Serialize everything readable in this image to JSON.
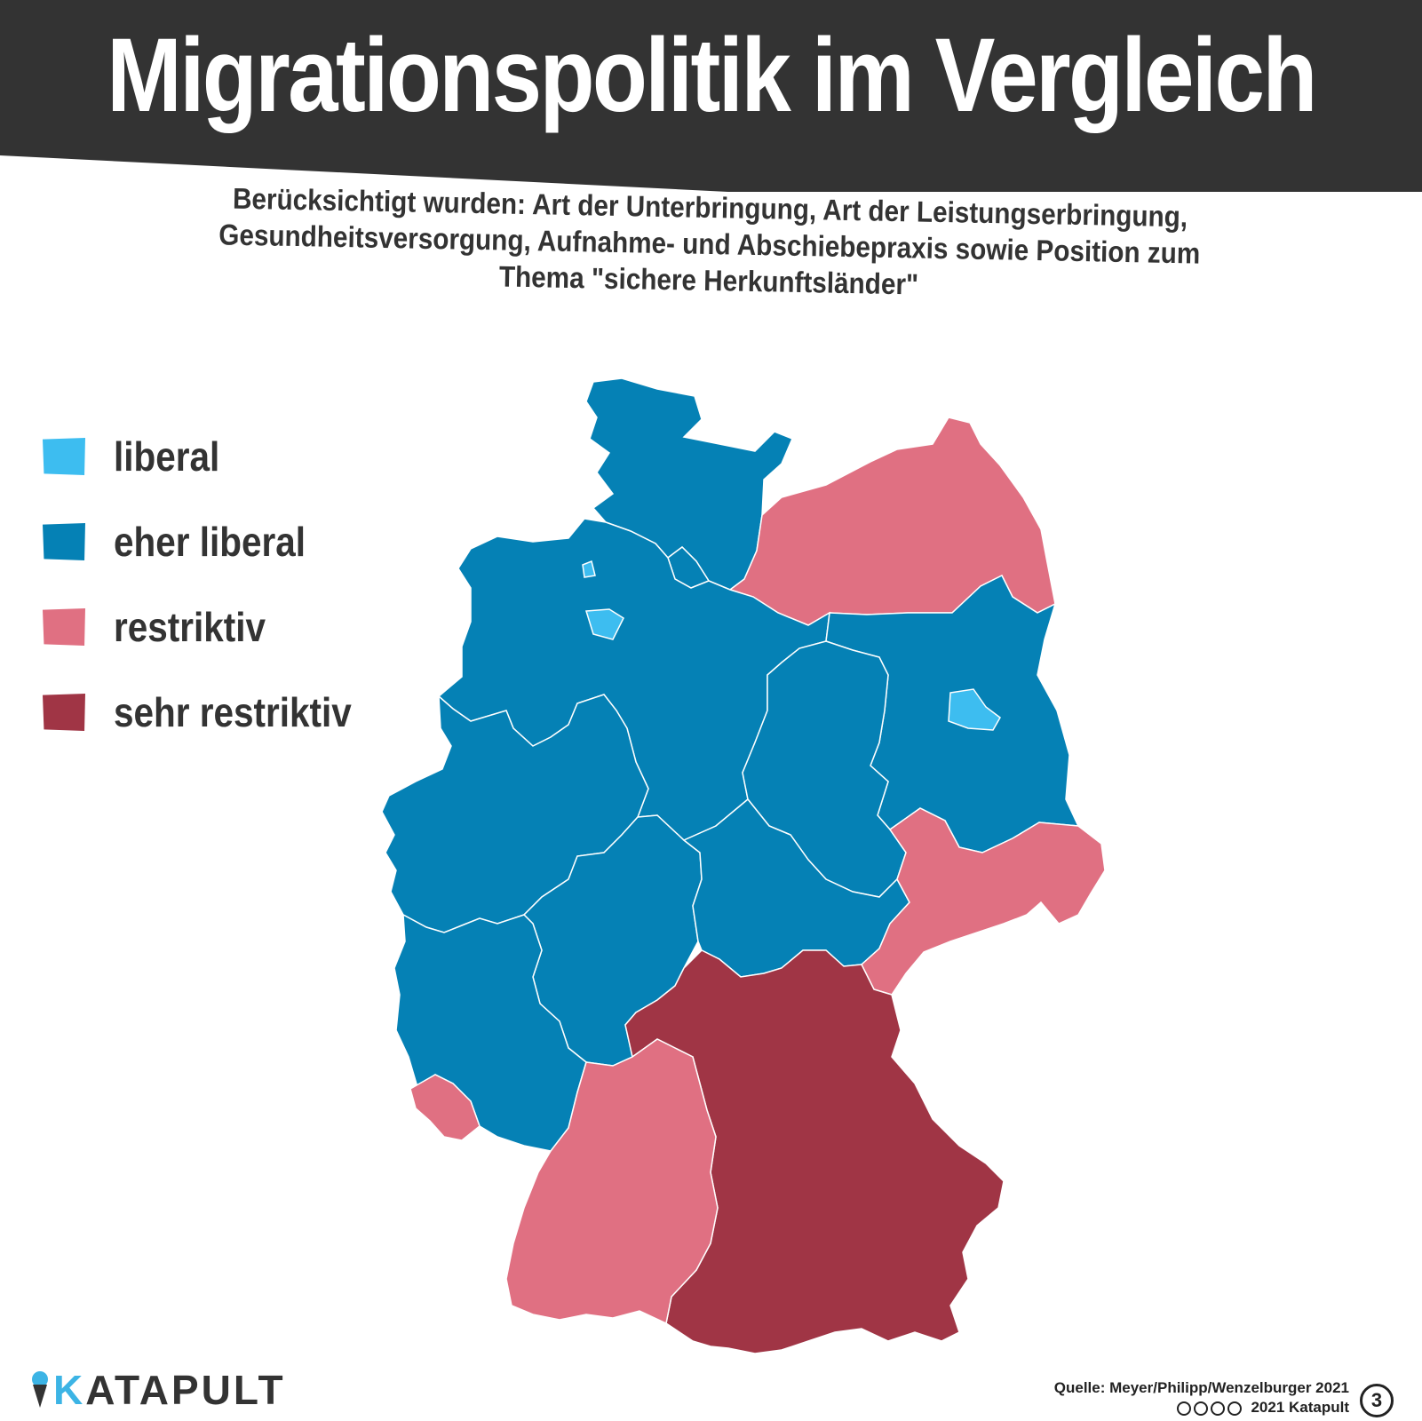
{
  "title": "Migrationspolitik im Vergleich",
  "subtitle": "Berücksichtigt wurden: Art der Unterbringung, Art der Leistungserbringung, Gesundheitsversorgung, Aufnahme- und Abschiebepraxis sowie Position zum Thema \"sichere Herkunftsländer\"",
  "legend": [
    {
      "label": "liberal",
      "color": "#3dbdf0"
    },
    {
      "label": "eher liberal",
      "color": "#0581b5"
    },
    {
      "label": "restriktiv",
      "color": "#e07082"
    },
    {
      "label": "sehr restriktiv",
      "color": "#a03545"
    }
  ],
  "colors": {
    "title_bar": "#333333",
    "border": "#ffffff"
  },
  "states": [
    {
      "id": "SH",
      "category": "eher liberal"
    },
    {
      "id": "HH",
      "category": "eher liberal"
    },
    {
      "id": "MV",
      "category": "restriktiv"
    },
    {
      "id": "NI",
      "category": "eher liberal"
    },
    {
      "id": "HB",
      "category": "liberal"
    },
    {
      "id": "BB",
      "category": "eher liberal"
    },
    {
      "id": "BE",
      "category": "liberal"
    },
    {
      "id": "ST",
      "category": "eher liberal"
    },
    {
      "id": "NW",
      "category": "eher liberal"
    },
    {
      "id": "HE",
      "category": "eher liberal"
    },
    {
      "id": "TH",
      "category": "eher liberal"
    },
    {
      "id": "SN",
      "category": "restriktiv"
    },
    {
      "id": "RP",
      "category": "eher liberal"
    },
    {
      "id": "SL",
      "category": "restriktiv"
    },
    {
      "id": "BW",
      "category": "restriktiv"
    },
    {
      "id": "BY",
      "category": "sehr restriktiv"
    }
  ],
  "brand": {
    "k": "K",
    "rest": "ATAPULT"
  },
  "source": "Quelle: Meyer/Philipp/Wenzelburger 2021",
  "copyright": "2021 Katapult",
  "issue_number": "3"
}
